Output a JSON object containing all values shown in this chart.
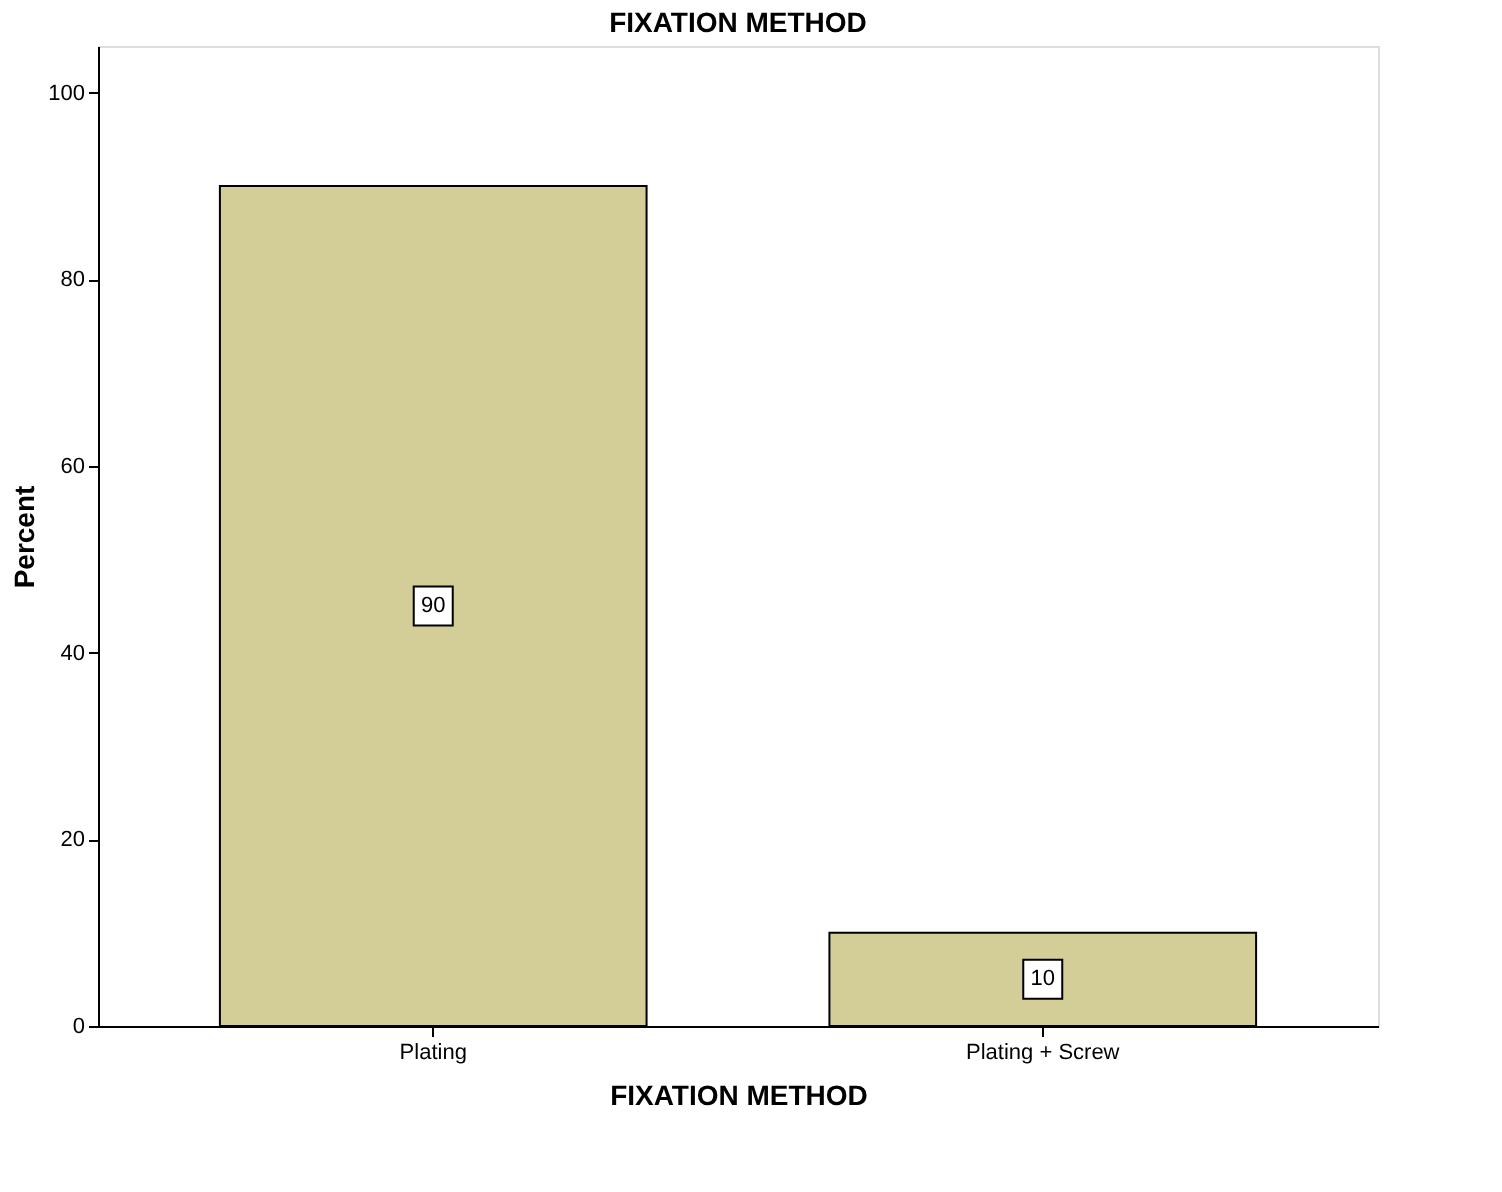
{
  "chart_data": {
    "type": "bar",
    "title": "FIXATION METHOD",
    "xlabel": "FIXATION METHOD",
    "ylabel": "Percent",
    "categories": [
      "Plating",
      "Plating + Screw"
    ],
    "values": [
      90,
      10
    ],
    "color": "#d3ce98",
    "ylim": [
      0,
      105
    ],
    "yticks": [
      0,
      20,
      40,
      60,
      80,
      100
    ],
    "grid": false,
    "data_labels": true
  }
}
